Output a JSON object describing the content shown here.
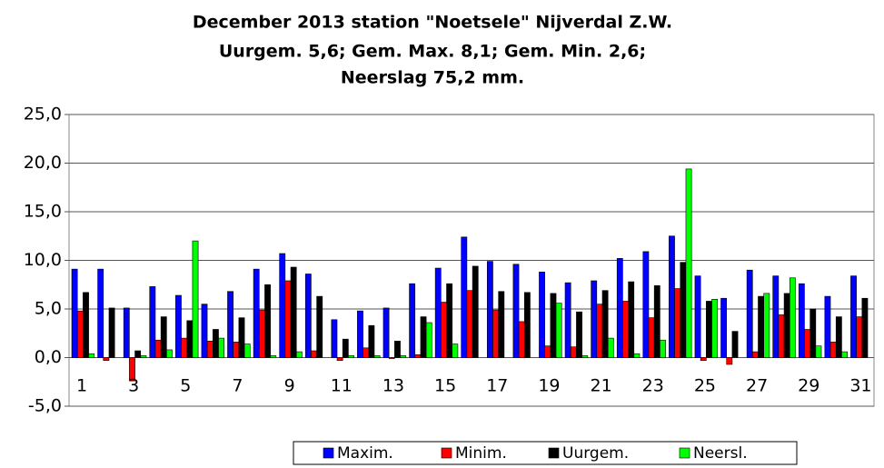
{
  "chart_data": {
    "type": "bar",
    "title": [
      "December 2013 station \"Noetsele\" Nijverdal Z.W.",
      "Uurgem. 5,6;  Gem. Max. 8,1; Gem. Min. 2,6;",
      "Neerslag 75,2 mm."
    ],
    "categories": [
      "1",
      null,
      "3",
      null,
      "5",
      null,
      "7",
      null,
      "9",
      null,
      "11",
      null,
      "13",
      null,
      "15",
      null,
      "17",
      null,
      "19",
      null,
      "21",
      null,
      "23",
      null,
      "25",
      null,
      "27",
      null,
      "29",
      null,
      "31"
    ],
    "series": [
      {
        "name": "Maxim.",
        "color": "#0000ff",
        "values": [
          9.1,
          9.1,
          5.1,
          7.3,
          6.4,
          5.5,
          6.8,
          9.1,
          10.7,
          8.6,
          3.9,
          4.8,
          5.1,
          7.6,
          9.2,
          12.4,
          9.9,
          9.6,
          8.8,
          7.7,
          7.9,
          10.2,
          10.9,
          12.5,
          8.4,
          6.1,
          9.0,
          8.4,
          7.6,
          6.3,
          8.4
        ]
      },
      {
        "name": "Minim.",
        "color": "#ff0000",
        "values": [
          4.8,
          -0.3,
          -2.4,
          1.8,
          2.0,
          1.7,
          1.6,
          4.9,
          7.9,
          0.7,
          -0.3,
          1.0,
          -0.1,
          0.3,
          5.7,
          6.9,
          4.9,
          3.7,
          1.2,
          1.1,
          5.5,
          5.8,
          4.1,
          7.1,
          -0.3,
          -0.7,
          0.6,
          4.4,
          2.9,
          1.6,
          4.2
        ]
      },
      {
        "name": "Uurgem.",
        "color": "#000000",
        "values": [
          6.7,
          5.1,
          0.7,
          4.2,
          3.8,
          2.9,
          4.1,
          7.5,
          9.3,
          6.3,
          1.9,
          3.3,
          1.7,
          4.2,
          7.6,
          9.4,
          6.8,
          6.7,
          6.6,
          4.7,
          6.9,
          7.8,
          7.4,
          9.8,
          5.8,
          2.7,
          6.3,
          6.6,
          5.0,
          4.2,
          6.1
        ]
      },
      {
        "name": "Neersl.",
        "color": "#00ff00",
        "values": [
          0.4,
          0,
          0.2,
          0.8,
          12.0,
          2.0,
          1.4,
          0.2,
          0.6,
          0,
          0.2,
          0.2,
          0.2,
          3.6,
          1.4,
          0,
          0,
          0,
          5.6,
          0.2,
          2.0,
          0.4,
          1.8,
          19.4,
          6.0,
          0,
          6.6,
          8.2,
          1.2,
          0.6,
          0
        ]
      }
    ],
    "ylim": [
      -5,
      25
    ],
    "yticks": [
      {
        "value": -5,
        "label": "-5,0"
      },
      {
        "value": 0,
        "label": "0,0"
      },
      {
        "value": 5,
        "label": "5,0"
      },
      {
        "value": 10,
        "label": "10,0"
      },
      {
        "value": 15,
        "label": "15,0"
      },
      {
        "value": 20,
        "label": "20,0"
      },
      {
        "value": 25,
        "label": "25,0"
      }
    ],
    "grid": true,
    "legend": "bottom"
  }
}
